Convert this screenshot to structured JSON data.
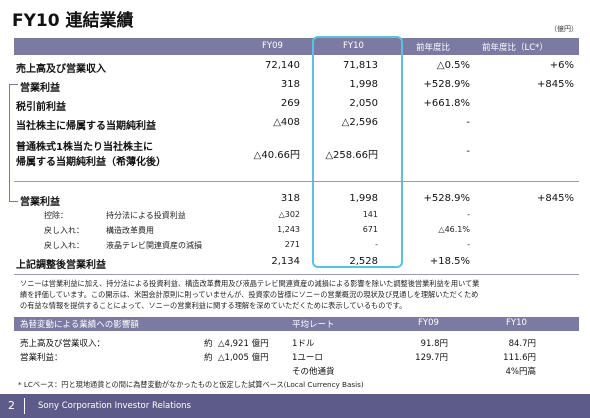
{
  "title": "FY10 連結業績",
  "unit": "（億円）",
  "header": {
    "fy09": "FY09",
    "fy10": "FY10",
    "yoy": "前年度比",
    "yoy_lc": "前年度比（LC*）"
  },
  "rows": [
    {
      "label": "売上高及び営業収入",
      "fy09": "72,140",
      "fy10": "71,813",
      "yoy": "△0.5%",
      "yoy_lc": "+6%"
    },
    {
      "label": "営業利益",
      "fy09": "318",
      "fy10": "1,998",
      "yoy": "+528.9%",
      "yoy_lc": "+845%"
    },
    {
      "label": "税引前利益",
      "fy09": "269",
      "fy10": "2,050",
      "yoy": "+661.8%",
      "yoy_lc": ""
    },
    {
      "label": "当社株主に帰属する当期純利益",
      "fy09": "△408",
      "fy10": "△2,596",
      "yoy": "-",
      "yoy_lc": ""
    },
    {
      "label": "普通株式1株当たり当社株主に",
      "label2": "帰属する当期純利益（希薄化後）",
      "fy09": "△40.66円",
      "fy10": "△258.66円",
      "yoy": "-",
      "yoy_lc": ""
    }
  ],
  "adjust": {
    "op": {
      "label": "営業利益",
      "fy09": "318",
      "fy10": "1,998",
      "yoy": "+528.9%",
      "yoy_lc": "+845%"
    },
    "items": [
      {
        "prefix": "控除：",
        "label": "持分法による投資利益",
        "fy09": "△302",
        "fy10": "141",
        "yoy": "-"
      },
      {
        "prefix": "戻し入れ：",
        "label": "構造改革費用",
        "fy09": "1,243",
        "fy10": "671",
        "yoy": "△46.1%"
      },
      {
        "prefix": "戻し入れ：",
        "label": "液晶テレビ関連資産の減損",
        "fy09": "271",
        "fy10": "-",
        "yoy": "-"
      }
    ],
    "total": {
      "label": "上記調整後営業利益",
      "fy09": "2,134",
      "fy10": "2,528",
      "yoy": "+18.5%"
    }
  },
  "notes": [
    "ソニーは営業利益に加え、持分法による投資利益、構造改革費用及び液晶テレビ関連資産の減損による影響を除いた調整後営業利益を用いて業",
    "績を評価しています。この開示は、米国会計原則に則っていませんが、投資家の皆様にソニーの営業概況の現状及び見通しを理解いただくため",
    "の有益な情報を提供することによって、ソニーの営業利益に関する理解を深めていただくために表示しているものです。"
  ],
  "fx": {
    "header": {
      "impact": "為替変動による業績への影響額",
      "rate": "平均レート",
      "fy09": "FY09",
      "fy10": "FY10"
    },
    "rows": [
      {
        "label": "売上高及び営業収入：",
        "prefix": "約",
        "amount": "△4,921 億円",
        "currency": "1ドル",
        "fy09": "91.8円",
        "fy10": "84.7円"
      },
      {
        "label": "営業利益：",
        "prefix": "約",
        "amount": "△1,005 億円",
        "currency": "1ユーロ",
        "fy09": "129.7円",
        "fy10": "111.6円"
      },
      {
        "label": "",
        "prefix": "",
        "amount": "",
        "currency": "その他通貨",
        "fy09": "",
        "fy10": "4%円高"
      }
    ],
    "footnote": "* LCベース：円と現地通貨との間に為替変動がなかったものと仮定した試算ベース(Local Currency Basis)"
  },
  "footer": {
    "page": "2",
    "company": "Sony Corporation Investor Relations"
  }
}
